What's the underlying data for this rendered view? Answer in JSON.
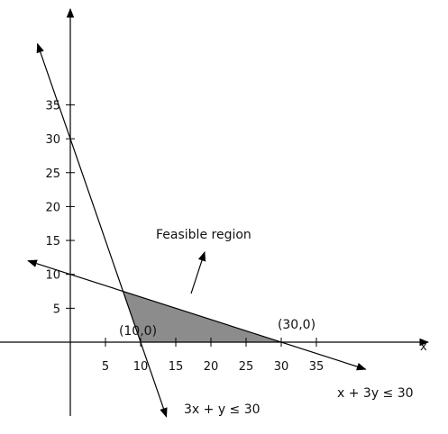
{
  "chart_data": {
    "type": "area",
    "x_axis_label": "x",
    "x_ticks": [
      5,
      10,
      15,
      20,
      25,
      30,
      35
    ],
    "y_ticks": [
      5,
      10,
      15,
      20,
      25,
      30,
      35
    ],
    "constraints": [
      {
        "label": "3x + y ≤ 30",
        "coef_x": 3,
        "coef_y": 1,
        "rhs": 30
      },
      {
        "label": "x + 3y ≤ 30",
        "coef_x": 1,
        "coef_y": 3,
        "rhs": 30
      }
    ],
    "feasible_region": {
      "label": "Feasible region",
      "color": "#8c8c8c",
      "vertices": [
        [
          7.5,
          7.5
        ],
        [
          10,
          0
        ],
        [
          30,
          0
        ]
      ]
    },
    "point_labels": [
      {
        "text": "(10,0)",
        "x": 10,
        "y": 0
      },
      {
        "text": "(30,0)",
        "x": 30,
        "y": 0
      }
    ]
  }
}
